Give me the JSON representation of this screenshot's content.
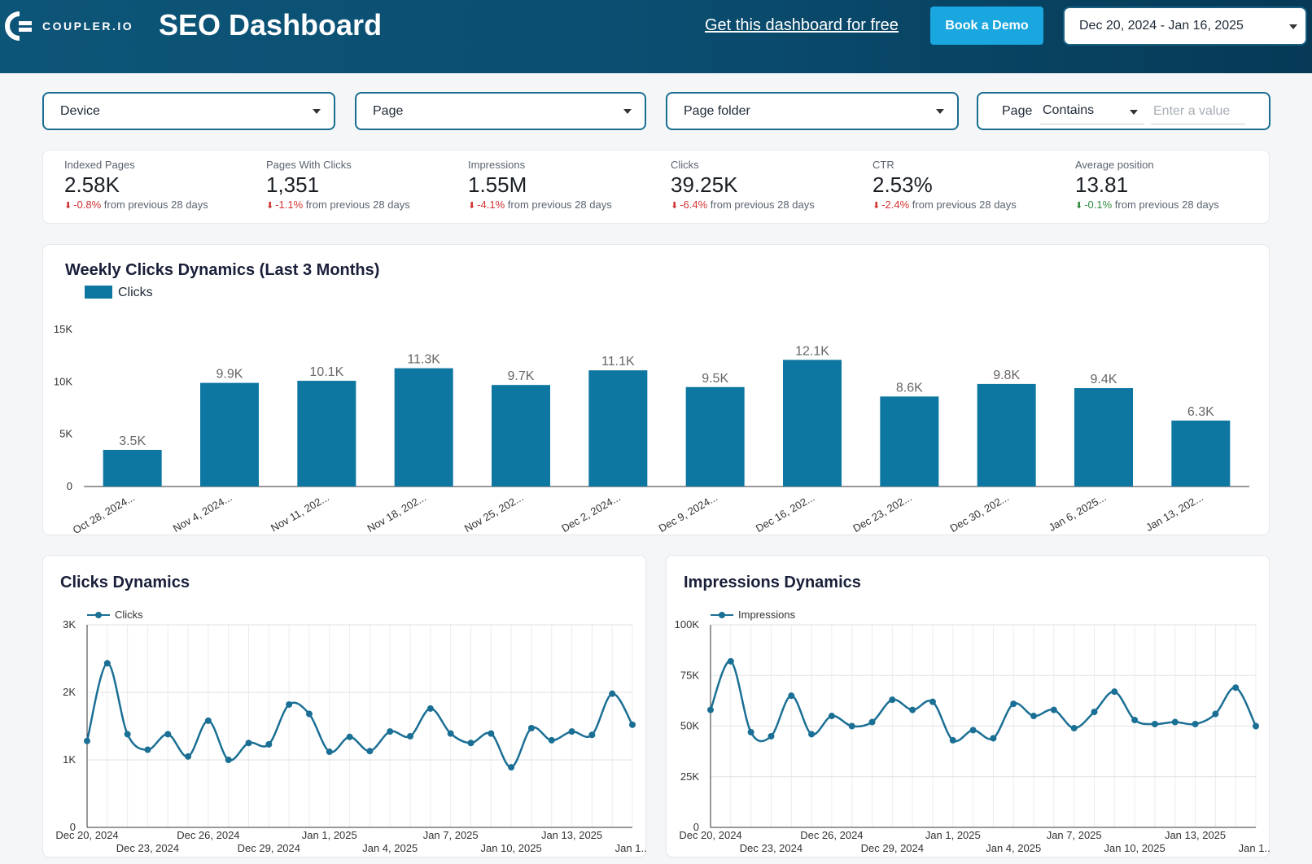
{
  "header": {
    "logo_text": "COUPLER.IO",
    "title": "SEO Dashboard",
    "free_link": "Get this dashboard for free",
    "demo_button": "Book a Demo",
    "date_range": "Dec 20, 2024 - Jan 16, 2025"
  },
  "filters": {
    "device": "Device",
    "page": "Page",
    "page_folder": "Page folder",
    "page_text_label": "Page",
    "page_text_operator": "Contains",
    "page_text_placeholder": "Enter a value"
  },
  "kpis": [
    {
      "label": "Indexed Pages",
      "value": "2.58K",
      "delta": "-0.8%",
      "suffix": "from previous 28 days",
      "trend": "down-bad"
    },
    {
      "label": "Pages With Clicks",
      "value": "1,351",
      "delta": "-1.1%",
      "suffix": "from previous 28 days",
      "trend": "down-bad"
    },
    {
      "label": "Impressions",
      "value": "1.55M",
      "delta": "-4.1%",
      "suffix": "from previous 28 days",
      "trend": "down-bad"
    },
    {
      "label": "Clicks",
      "value": "39.25K",
      "delta": "-6.4%",
      "suffix": "from previous 28 days",
      "trend": "down-bad"
    },
    {
      "label": "CTR",
      "value": "2.53%",
      "delta": "-2.4%",
      "suffix": "from previous 28 days",
      "trend": "down-bad"
    },
    {
      "label": "Average position",
      "value": "13.81",
      "delta": "-0.1%",
      "suffix": "from previous 28 days",
      "trend": "down-good"
    }
  ],
  "colors": {
    "bar": "#0e77a1",
    "line": "#1a6f94",
    "bad": "#d33131",
    "good": "#2e8b3e"
  },
  "chart_data": [
    {
      "type": "bar",
      "title": "Weekly Clicks Dynamics (Last 3 Months)",
      "legend": "Clicks",
      "categories": [
        "Oct 28, 2024...",
        "Nov 4, 2024...",
        "Nov 11, 202...",
        "Nov 18, 202...",
        "Nov 25, 202...",
        "Dec 2, 2024...",
        "Dec 9, 2024...",
        "Dec 16, 202...",
        "Dec 23, 202...",
        "Dec 30, 202...",
        "Jan 6, 2025...",
        "Jan 13, 202..."
      ],
      "values": [
        3500,
        9900,
        10100,
        11300,
        9700,
        11100,
        9500,
        12100,
        8600,
        9800,
        9400,
        6300
      ],
      "data_labels": [
        "3.5K",
        "9.9K",
        "10.1K",
        "11.3K",
        "9.7K",
        "11.1K",
        "9.5K",
        "12.1K",
        "8.6K",
        "9.8K",
        "9.4K",
        "6.3K"
      ],
      "yticks": [
        "0",
        "5K",
        "10K",
        "15K"
      ],
      "ylim": [
        0,
        15000
      ]
    },
    {
      "type": "line",
      "title": "Clicks Dynamics",
      "legend": "Clicks",
      "values": [
        1280,
        2430,
        1380,
        1150,
        1380,
        1050,
        1580,
        1000,
        1250,
        1230,
        1820,
        1680,
        1120,
        1340,
        1130,
        1420,
        1350,
        1760,
        1390,
        1250,
        1390,
        890,
        1470,
        1290,
        1420,
        1370,
        1980,
        1520
      ],
      "xtick_top": [
        "Dec 20, 2024",
        "Dec 26, 2024",
        "Jan 1, 2025",
        "Jan 7, 2025",
        "Jan 13, 2025"
      ],
      "xtick_bottom": [
        "Dec 23, 2024",
        "Dec 29, 2024",
        "Jan 4, 2025",
        "Jan 10, 2025",
        "Jan 1..."
      ],
      "yticks": [
        "0",
        "1K",
        "2K",
        "3K"
      ],
      "ylim": [
        0,
        3000
      ]
    },
    {
      "type": "line",
      "title": "Impressions Dynamics",
      "legend": "Impressions",
      "values": [
        58000,
        82000,
        47000,
        45000,
        65000,
        46000,
        55000,
        50000,
        52000,
        63000,
        58000,
        62000,
        43000,
        48000,
        44000,
        61000,
        55000,
        58000,
        49000,
        57000,
        67000,
        53000,
        51000,
        52000,
        51000,
        56000,
        69000,
        50000
      ],
      "xtick_top": [
        "Dec 20, 2024",
        "Dec 26, 2024",
        "Jan 1, 2025",
        "Jan 7, 2025",
        "Jan 13, 2025"
      ],
      "xtick_bottom": [
        "Dec 23, 2024",
        "Dec 29, 2024",
        "Jan 4, 2025",
        "Jan 10, 2025",
        "Jan 1..."
      ],
      "yticks": [
        "0",
        "25K",
        "50K",
        "75K",
        "100K"
      ],
      "ylim": [
        0,
        100000
      ]
    }
  ]
}
